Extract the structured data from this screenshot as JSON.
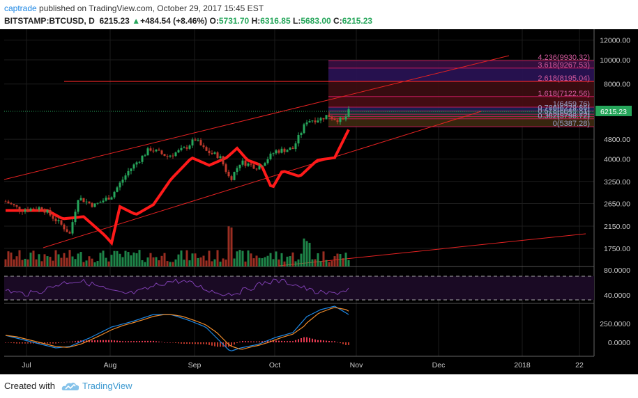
{
  "header": {
    "author": "captrade",
    "published": " published on TradingView.com, October 29, 2017 15:45 EST",
    "symbol": "BITSTAMP:BTCUSD, D",
    "price": "6215.23",
    "change": "+484.54 (+8.46%)",
    "o_label": "O:",
    "o_val": "5731.70",
    "h_label": "H:",
    "h_val": "6316.85",
    "l_label": "L:",
    "l_val": "5683.00",
    "c_label": "C:",
    "c_val": "6215.23"
  },
  "footer": {
    "created": "Created with",
    "brand": "TradingView"
  },
  "colors": {
    "up": "#26a65b",
    "down": "#c0392b",
    "background": "#000000",
    "fib_line": "#c2185b",
    "rsi": "#7e3fb0",
    "macd": "#1e88e5",
    "signal": "#f08c2c"
  },
  "chart_data": {
    "type": "candlestick",
    "price_axis": {
      "scale": "log",
      "ticks": [
        "12000.00",
        "10000.00",
        "8000.00",
        "6215.23",
        "4800.00",
        "4000.00",
        "3250.00",
        "2650.00",
        "2150.00",
        "1750.00"
      ],
      "current": "6215.23"
    },
    "time_axis": [
      "Jul",
      "Aug",
      "Sep",
      "Oct",
      "Nov",
      "Dec",
      "2018",
      "22"
    ],
    "fib_levels": [
      {
        "label": "4.236(9930.32)",
        "value": 9930.32
      },
      {
        "label": "3.618(9267.53)",
        "value": 9267.53
      },
      {
        "label": "2.618(8195.04)",
        "value": 8195.04
      },
      {
        "label": "1.618(7122.56)",
        "value": 7122.56
      },
      {
        "label": "1(6459.76)",
        "value": 6459.76
      },
      {
        "label": "0.786(6229.86)",
        "value": 6229.86
      },
      {
        "label": "0.618(6049.81)",
        "value": 6049.81
      },
      {
        "label": "0.5(5923.29)",
        "value": 5923.29
      },
      {
        "label": "0.382(5796.72)",
        "value": 5796.72
      },
      {
        "label": "0(5387.28)",
        "value": 5387.28
      }
    ],
    "rsi_axis": [
      "80.0000",
      "40.0000"
    ],
    "macd_axis": [
      "250.0000",
      "0.0000"
    ]
  }
}
